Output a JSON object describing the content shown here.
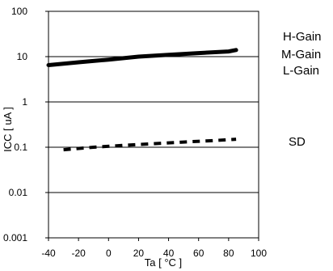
{
  "chart_data": {
    "type": "line",
    "xlabel": "Ta [ °C ]",
    "ylabel": "ICC [ uA ]",
    "xlim": [
      -40,
      100
    ],
    "ylim": [
      0.001,
      100
    ],
    "yscale": "log",
    "grid": "horizontal",
    "x_ticks": [
      "-40",
      "-20",
      "0",
      "20",
      "40",
      "60",
      "80",
      "100"
    ],
    "y_ticks": [
      "0.001",
      "0.01",
      "0.1",
      "1",
      "10",
      "100"
    ],
    "series_labels": [
      "H-Gain",
      "M-Gain",
      "L-Gain",
      "SD"
    ],
    "series": [
      {
        "name": "H-Gain / M-Gain / L-Gain",
        "style": "solid",
        "color": "#000000",
        "x": [
          -40,
          -20,
          0,
          20,
          40,
          60,
          80,
          85
        ],
        "y": [
          6.5,
          7.5,
          8.6,
          10.0,
          11.0,
          12.0,
          13.0,
          14.0
        ]
      },
      {
        "name": "SD",
        "style": "dashed",
        "color": "#000000",
        "x": [
          -30,
          -10,
          10,
          30,
          50,
          70,
          85
        ],
        "y": [
          0.088,
          0.1,
          0.11,
          0.12,
          0.13,
          0.14,
          0.15
        ]
      }
    ]
  }
}
